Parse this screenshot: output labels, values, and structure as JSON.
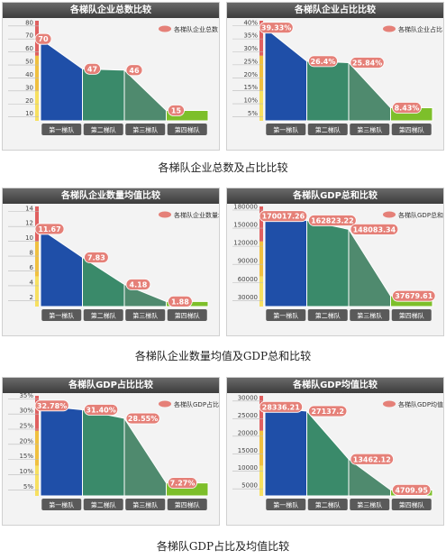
{
  "colors": {
    "series": [
      "#1f4fa8",
      "#3a8a6a",
      "#4f8a6e",
      "#7dbf2a"
    ],
    "label_bg": "#e58078",
    "title_bar": "#4a4a4a",
    "category_btn": "#5a5a5a",
    "axis_stripe": [
      "#e06060",
      "#f0c040",
      "#f7e060"
    ]
  },
  "panels": [
    {
      "title": "各梯队企业总数比较",
      "legend": "各梯队企业总数",
      "chart_data": {
        "type": "area",
        "categories": [
          "第一梯队",
          "第二梯队",
          "第三梯队",
          "第四梯队"
        ],
        "values": [
          70,
          47,
          46,
          15
        ],
        "value_labels": [
          "70",
          "47",
          "46",
          "15"
        ],
        "yticks": [
          "10",
          "20",
          "30",
          "40",
          "50",
          "60",
          "70",
          "80"
        ],
        "ylim": [
          7,
          84
        ]
      }
    },
    {
      "title": "各梯队企业占比比较",
      "legend": "各梯队企业占比",
      "chart_data": {
        "type": "area",
        "categories": [
          "第一梯队",
          "第二梯队",
          "第三梯队",
          "第四梯队"
        ],
        "values": [
          39.33,
          26.4,
          25.84,
          8.43
        ],
        "value_labels": [
          "39.33%",
          "26.4%",
          "25.84%",
          "8.43%"
        ],
        "yticks": [
          "5%",
          "10%",
          "15%",
          "20%",
          "25%",
          "30%",
          "35%",
          "40%"
        ],
        "ylim": [
          3.4,
          42
        ]
      }
    },
    {
      "title": "各梯队企业数量均值比较",
      "legend": "各梯队企业数量均值",
      "chart_data": {
        "type": "area",
        "categories": [
          "第一梯队",
          "第二梯队",
          "第三梯队",
          "第四梯队"
        ],
        "values": [
          11.67,
          7.83,
          4.18,
          1.88
        ],
        "value_labels": [
          "11.67",
          "7.83",
          "4.18",
          "1.88"
        ],
        "yticks": [
          "2",
          "4",
          "6",
          "8",
          "10",
          "12",
          "14"
        ],
        "ylim": [
          1.2,
          14.7
        ]
      }
    },
    {
      "title": "各梯队GDP总和比较",
      "legend": "各梯队GDP总和比较",
      "chart_data": {
        "type": "area",
        "categories": [
          "第一梯队",
          "第二梯队",
          "第三梯队",
          "第四梯队"
        ],
        "values": [
          170017.26,
          162823.22,
          148083.34,
          37679.61
        ],
        "value_labels": [
          "170017.26",
          "162823.22",
          "148083.34",
          "37679.61"
        ],
        "yticks": [
          "30000",
          "60000",
          "90000",
          "120000",
          "150000",
          "180000"
        ],
        "ylim": [
          20000,
          186000
        ]
      }
    },
    {
      "title": "各梯队GDP占比比较",
      "legend": "各梯队GDP占比",
      "chart_data": {
        "type": "area",
        "categories": [
          "第一梯队",
          "第二梯队",
          "第三梯队",
          "第四梯队"
        ],
        "values": [
          32.78,
          31.4,
          28.55,
          7.27
        ],
        "value_labels": [
          "32.78%",
          "31.40%",
          "28.55%",
          "7.27%"
        ],
        "yticks": [
          "5%",
          "10%",
          "15%",
          "20%",
          "25%",
          "30%",
          "35%"
        ],
        "ylim": [
          3,
          36
        ]
      }
    },
    {
      "title": "各梯队GDP均值比较",
      "legend": "各梯队GDP均值",
      "chart_data": {
        "type": "area",
        "categories": [
          "第一梯队",
          "第二梯队",
          "第三梯队",
          "第四梯队"
        ],
        "values": [
          28336.21,
          27137.2,
          13462.12,
          4709.95
        ],
        "value_labels": [
          "28336.21",
          "27137.2",
          "13462.12",
          "4709.95"
        ],
        "yticks": [
          "5000",
          "10000",
          "15000",
          "20000",
          "25000",
          "30000"
        ],
        "ylim": [
          3000,
          31500
        ]
      }
    }
  ],
  "captions": [
    "各梯队企业总数及占比比较",
    "各梯队企业数量均值及GDP总和比较",
    "各梯队GDP占比及均值比较"
  ]
}
